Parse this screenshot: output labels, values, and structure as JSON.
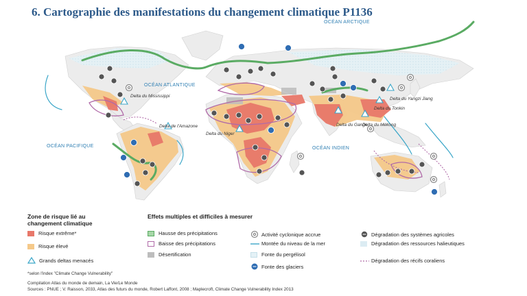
{
  "title": "6. Cartographie des manifestations du changement climatique P1136",
  "map": {
    "oceans": {
      "arctique": "OCÉAN ARCTIQUE",
      "atlantique": "OCÉAN ATLANTIQUE",
      "pacifique": "OCÉAN PACIFIQUE",
      "indien": "OCÉAN INDIEN"
    },
    "deltas": {
      "mississippi": "Delta du Mississippi",
      "amazone": "Delta de l'Amazone",
      "niger": "Delta du Niger",
      "gange": "Delta du Gange",
      "mekong": "Delta du Mékong",
      "tonkin": "Delta du Tonkin",
      "yangzi": "Delta du Yangzi Jiang"
    },
    "colors": {
      "land": "#ececec",
      "extreme": "#e8786a",
      "eleve": "#f5c98a",
      "hausse": "#5aab63",
      "baisse": "#b06aa8",
      "mer": "#3aa6c8",
      "pergelisol": "#e4f1f6",
      "glacier": "#2f6db3",
      "agri": "#555555"
    }
  },
  "legend": {
    "zone": {
      "heading": "Zone de risque lié au changement climatique",
      "extreme": "Risque extrême*",
      "eleve": "Risque élevé",
      "deltas": "Grands deltas menacés"
    },
    "effets": {
      "heading": "Effets multiples et difficiles à mesurer",
      "hausse": "Hausse des précipitations",
      "baisse": "Baisse des précipitations",
      "desert": "Désertification",
      "cyclone": "Activité cyclonique accrue",
      "mer": "Montée du niveau de la mer",
      "pergelisol": "Fonte du pergélisol",
      "glaciers": "Fonte des glaciers",
      "agri": "Dégradation des systèmes agricoles",
      "halieutiques": "Dégradation des ressources halieutiques",
      "recifs": "Dégradation des récifs coraliens"
    }
  },
  "notes": {
    "index": "*selon l'index \"Climate Change Vulnerability\"",
    "compilation": "Compilation Atlas du monde de demain, La Vie/Le Monde",
    "sources": "Sources : PNUE ; V. Raisson, 2033, Atlas des futurs du monde, Robert Laffont, 2008 ; Maplecroft, Climate Change Vulnerability Index 2013"
  }
}
